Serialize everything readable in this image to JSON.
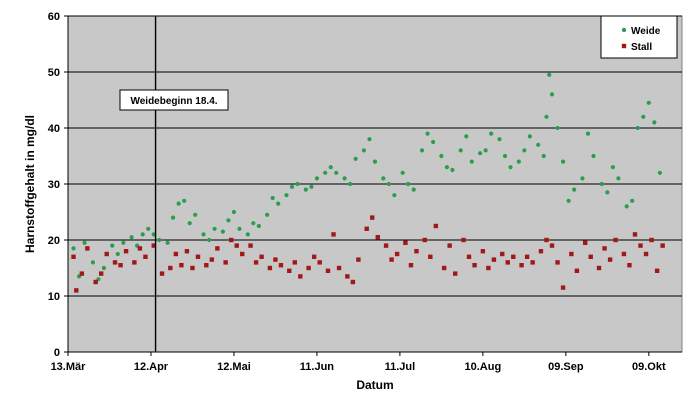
{
  "chart_data": {
    "type": "scatter",
    "title": "",
    "xlabel": "Datum",
    "ylabel": "Harnstoffgehalt in mg/dl",
    "ylim": [
      0,
      60
    ],
    "y_ticks": [
      "0",
      "10",
      "20",
      "30",
      "40",
      "50",
      "60"
    ],
    "x_tick_labels": [
      "13.Mär",
      "12.Apr",
      "12.Mai",
      "11.Jun",
      "11.Jul",
      "10.Aug",
      "09.Sep",
      "09.Okt"
    ],
    "grid": "horizontal",
    "legend_position": "top-right",
    "annotation": {
      "label": "Weidebeginn 18.4.",
      "x": "2010-04-18"
    },
    "colors": {
      "plot_bg": "#c8c8c8",
      "weide": "#2a9d4e",
      "stall": "#a01818"
    },
    "series": [
      {
        "name": "Weide",
        "points": [
          [
            "2010-03-15",
            18.5
          ],
          [
            "2010-03-17",
            13.5
          ],
          [
            "2010-03-19",
            19.5
          ],
          [
            "2010-03-22",
            16.0
          ],
          [
            "2010-03-24",
            13.0
          ],
          [
            "2010-03-26",
            15.0
          ],
          [
            "2010-03-29",
            19.0
          ],
          [
            "2010-03-31",
            17.5
          ],
          [
            "2010-04-02",
            19.5
          ],
          [
            "2010-04-05",
            20.5
          ],
          [
            "2010-04-07",
            19.0
          ],
          [
            "2010-04-09",
            21.0
          ],
          [
            "2010-04-11",
            22.0
          ],
          [
            "2010-04-13",
            21.0
          ],
          [
            "2010-04-15",
            20.0
          ],
          [
            "2010-04-18",
            19.5
          ],
          [
            "2010-04-20",
            24.0
          ],
          [
            "2010-04-22",
            26.5
          ],
          [
            "2010-04-24",
            27.0
          ],
          [
            "2010-04-26",
            23.0
          ],
          [
            "2010-04-28",
            24.5
          ],
          [
            "2010-05-01",
            21.0
          ],
          [
            "2010-05-03",
            20.0
          ],
          [
            "2010-05-05",
            22.0
          ],
          [
            "2010-05-08",
            21.5
          ],
          [
            "2010-05-10",
            23.5
          ],
          [
            "2010-05-12",
            25.0
          ],
          [
            "2010-05-14",
            22.0
          ],
          [
            "2010-05-17",
            21.0
          ],
          [
            "2010-05-19",
            23.0
          ],
          [
            "2010-05-21",
            22.5
          ],
          [
            "2010-05-24",
            24.5
          ],
          [
            "2010-05-26",
            27.5
          ],
          [
            "2010-05-28",
            26.5
          ],
          [
            "2010-05-31",
            28.0
          ],
          [
            "2010-06-02",
            29.5
          ],
          [
            "2010-06-04",
            30.0
          ],
          [
            "2010-06-07",
            29.0
          ],
          [
            "2010-06-09",
            29.5
          ],
          [
            "2010-06-11",
            31.0
          ],
          [
            "2010-06-14",
            32.0
          ],
          [
            "2010-06-16",
            33.0
          ],
          [
            "2010-06-18",
            32.0
          ],
          [
            "2010-06-21",
            31.0
          ],
          [
            "2010-06-23",
            30.0
          ],
          [
            "2010-06-25",
            34.5
          ],
          [
            "2010-06-28",
            36.0
          ],
          [
            "2010-06-30",
            38.0
          ],
          [
            "2010-07-02",
            34.0
          ],
          [
            "2010-07-05",
            31.0
          ],
          [
            "2010-07-07",
            30.0
          ],
          [
            "2010-07-09",
            28.0
          ],
          [
            "2010-07-12",
            32.0
          ],
          [
            "2010-07-14",
            30.0
          ],
          [
            "2010-07-16",
            29.0
          ],
          [
            "2010-07-19",
            36.0
          ],
          [
            "2010-07-21",
            39.0
          ],
          [
            "2010-07-23",
            37.5
          ],
          [
            "2010-07-26",
            35.0
          ],
          [
            "2010-07-28",
            33.0
          ],
          [
            "2010-07-30",
            32.5
          ],
          [
            "2010-08-02",
            36.0
          ],
          [
            "2010-08-04",
            38.5
          ],
          [
            "2010-08-06",
            34.0
          ],
          [
            "2010-08-09",
            35.5
          ],
          [
            "2010-08-11",
            36.0
          ],
          [
            "2010-08-13",
            39.0
          ],
          [
            "2010-08-16",
            38.0
          ],
          [
            "2010-08-18",
            35.0
          ],
          [
            "2010-08-20",
            33.0
          ],
          [
            "2010-08-23",
            34.0
          ],
          [
            "2010-08-25",
            36.0
          ],
          [
            "2010-08-27",
            38.5
          ],
          [
            "2010-08-30",
            37.0
          ],
          [
            "2010-09-01",
            35.0
          ],
          [
            "2010-09-02",
            42.0
          ],
          [
            "2010-09-03",
            49.5
          ],
          [
            "2010-09-04",
            46.0
          ],
          [
            "2010-09-06",
            40.0
          ],
          [
            "2010-09-08",
            34.0
          ],
          [
            "2010-09-10",
            27.0
          ],
          [
            "2010-09-12",
            29.0
          ],
          [
            "2010-09-15",
            31.0
          ],
          [
            "2010-09-17",
            39.0
          ],
          [
            "2010-09-19",
            35.0
          ],
          [
            "2010-09-22",
            30.0
          ],
          [
            "2010-09-24",
            28.5
          ],
          [
            "2010-09-26",
            33.0
          ],
          [
            "2010-09-28",
            31.0
          ],
          [
            "2010-10-01",
            26.0
          ],
          [
            "2010-10-03",
            27.0
          ],
          [
            "2010-10-05",
            40.0
          ],
          [
            "2010-10-07",
            42.0
          ],
          [
            "2010-10-09",
            44.5
          ],
          [
            "2010-10-11",
            41.0
          ],
          [
            "2010-10-13",
            32.0
          ]
        ]
      },
      {
        "name": "Stall",
        "points": [
          [
            "2010-03-15",
            17.0
          ],
          [
            "2010-03-16",
            11.0
          ],
          [
            "2010-03-18",
            14.0
          ],
          [
            "2010-03-20",
            18.5
          ],
          [
            "2010-03-23",
            12.5
          ],
          [
            "2010-03-25",
            14.0
          ],
          [
            "2010-03-27",
            17.5
          ],
          [
            "2010-03-30",
            16.0
          ],
          [
            "2010-04-01",
            15.5
          ],
          [
            "2010-04-03",
            18.0
          ],
          [
            "2010-04-06",
            16.0
          ],
          [
            "2010-04-08",
            18.5
          ],
          [
            "2010-04-10",
            17.0
          ],
          [
            "2010-04-13",
            19.0
          ],
          [
            "2010-04-16",
            14.0
          ],
          [
            "2010-04-19",
            15.0
          ],
          [
            "2010-04-21",
            17.5
          ],
          [
            "2010-04-23",
            15.5
          ],
          [
            "2010-04-25",
            18.0
          ],
          [
            "2010-04-27",
            15.0
          ],
          [
            "2010-04-29",
            17.0
          ],
          [
            "2010-05-02",
            15.5
          ],
          [
            "2010-05-04",
            16.5
          ],
          [
            "2010-05-06",
            18.5
          ],
          [
            "2010-05-09",
            16.0
          ],
          [
            "2010-05-11",
            20.0
          ],
          [
            "2010-05-13",
            19.0
          ],
          [
            "2010-05-15",
            17.5
          ],
          [
            "2010-05-18",
            19.0
          ],
          [
            "2010-05-20",
            16.0
          ],
          [
            "2010-05-22",
            17.0
          ],
          [
            "2010-05-25",
            15.0
          ],
          [
            "2010-05-27",
            16.5
          ],
          [
            "2010-05-29",
            15.5
          ],
          [
            "2010-06-01",
            14.5
          ],
          [
            "2010-06-03",
            16.0
          ],
          [
            "2010-06-05",
            13.5
          ],
          [
            "2010-06-08",
            15.0
          ],
          [
            "2010-06-10",
            17.0
          ],
          [
            "2010-06-12",
            16.0
          ],
          [
            "2010-06-15",
            14.5
          ],
          [
            "2010-06-17",
            21.0
          ],
          [
            "2010-06-19",
            15.0
          ],
          [
            "2010-06-22",
            13.5
          ],
          [
            "2010-06-24",
            12.5
          ],
          [
            "2010-06-26",
            16.5
          ],
          [
            "2010-06-29",
            22.0
          ],
          [
            "2010-07-01",
            24.0
          ],
          [
            "2010-07-03",
            20.5
          ],
          [
            "2010-07-06",
            19.0
          ],
          [
            "2010-07-08",
            16.5
          ],
          [
            "2010-07-10",
            17.5
          ],
          [
            "2010-07-13",
            19.5
          ],
          [
            "2010-07-15",
            15.5
          ],
          [
            "2010-07-17",
            18.0
          ],
          [
            "2010-07-20",
            20.0
          ],
          [
            "2010-07-22",
            17.0
          ],
          [
            "2010-07-24",
            22.5
          ],
          [
            "2010-07-27",
            15.0
          ],
          [
            "2010-07-29",
            19.0
          ],
          [
            "2010-07-31",
            14.0
          ],
          [
            "2010-08-03",
            20.0
          ],
          [
            "2010-08-05",
            17.0
          ],
          [
            "2010-08-07",
            15.5
          ],
          [
            "2010-08-10",
            18.0
          ],
          [
            "2010-08-12",
            15.0
          ],
          [
            "2010-08-14",
            16.5
          ],
          [
            "2010-08-17",
            17.5
          ],
          [
            "2010-08-19",
            16.0
          ],
          [
            "2010-08-21",
            17.0
          ],
          [
            "2010-08-24",
            15.5
          ],
          [
            "2010-08-26",
            17.0
          ],
          [
            "2010-08-28",
            16.0
          ],
          [
            "2010-08-31",
            18.0
          ],
          [
            "2010-09-02",
            20.0
          ],
          [
            "2010-09-04",
            19.0
          ],
          [
            "2010-09-06",
            16.0
          ],
          [
            "2010-09-08",
            11.5
          ],
          [
            "2010-09-11",
            17.5
          ],
          [
            "2010-09-13",
            14.5
          ],
          [
            "2010-09-16",
            19.5
          ],
          [
            "2010-09-18",
            17.0
          ],
          [
            "2010-09-21",
            15.0
          ],
          [
            "2010-09-23",
            18.5
          ],
          [
            "2010-09-25",
            16.5
          ],
          [
            "2010-09-27",
            20.0
          ],
          [
            "2010-09-30",
            17.5
          ],
          [
            "2010-10-02",
            15.5
          ],
          [
            "2010-10-04",
            21.0
          ],
          [
            "2010-10-06",
            19.0
          ],
          [
            "2010-10-08",
            17.5
          ],
          [
            "2010-10-10",
            20.0
          ],
          [
            "2010-10-12",
            14.5
          ],
          [
            "2010-10-14",
            19.0
          ]
        ]
      }
    ]
  }
}
